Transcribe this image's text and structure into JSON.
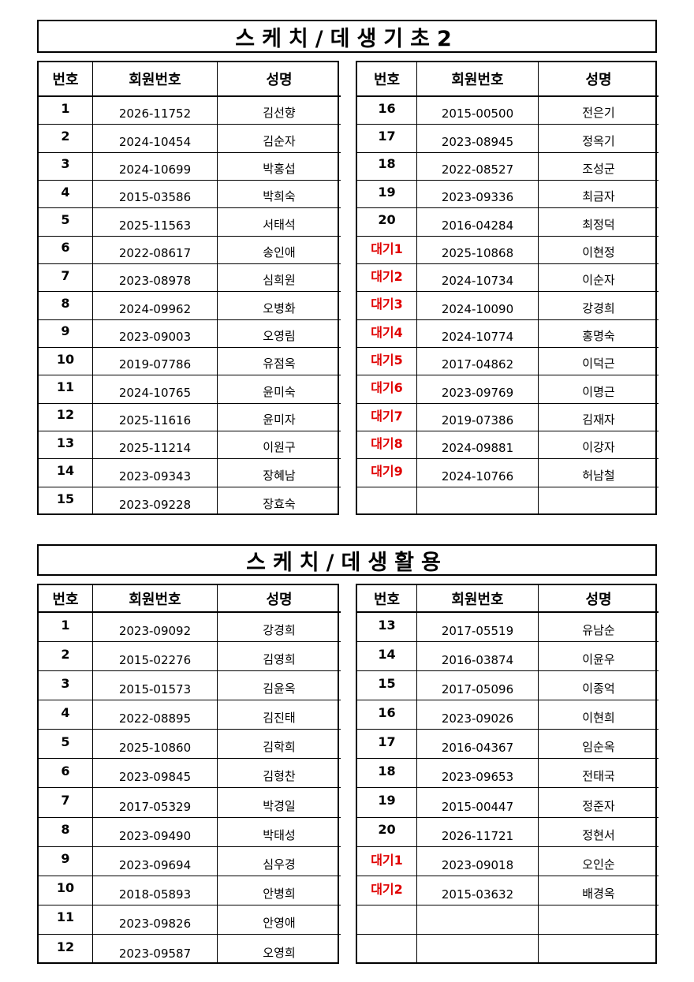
{
  "sections": [
    {
      "title": "스케치/데생기초2",
      "tables": [
        {
          "header": [
            "번호",
            "회원번호",
            "성명"
          ],
          "rows": [
            [
              "1",
              "2026-11752",
              "김선향"
            ],
            [
              "2",
              "2024-10454",
              "김순자"
            ],
            [
              "3",
              "2024-10699",
              "박홍섭"
            ],
            [
              "4",
              "2015-03586",
              "박희숙"
            ],
            [
              "5",
              "2025-11563",
              "서태석"
            ],
            [
              "6",
              "2022-08617",
              "송인애"
            ],
            [
              "7",
              "2023-08978",
              "심희원"
            ],
            [
              "8",
              "2024-09962",
              "오병화"
            ],
            [
              "9",
              "2023-09003",
              "오영림"
            ],
            [
              "10",
              "2019-07786",
              "유점옥"
            ],
            [
              "11",
              "2024-10765",
              "윤미숙"
            ],
            [
              "12",
              "2025-11616",
              "윤미자"
            ],
            [
              "13",
              "2025-11214",
              "이원구"
            ],
            [
              "14",
              "2023-09343",
              "장혜남"
            ],
            [
              "15",
              "2023-09228",
              "장효숙"
            ]
          ]
        },
        {
          "header": [
            "번호",
            "회원번호",
            "성명"
          ],
          "rows": [
            [
              "16",
              "2015-00500",
              "전은기"
            ],
            [
              "17",
              "2023-08945",
              "정옥기"
            ],
            [
              "18",
              "2022-08527",
              "조성군"
            ],
            [
              "19",
              "2023-09336",
              "최금자"
            ],
            [
              "20",
              "2016-04284",
              "최정덕"
            ],
            [
              "대기1",
              "2025-10868",
              "이현정"
            ],
            [
              "대기2",
              "2024-10734",
              "이순자"
            ],
            [
              "대기3",
              "2024-10090",
              "강경희"
            ],
            [
              "대기4",
              "2024-10774",
              "홍명숙"
            ],
            [
              "대기5",
              "2017-04862",
              "이덕근"
            ],
            [
              "대기6",
              "2023-09769",
              "이명근"
            ],
            [
              "대기7",
              "2019-07386",
              "김재자"
            ],
            [
              "대기8",
              "2024-09881",
              "이강자"
            ],
            [
              "대기9",
              "2024-10766",
              "허남철"
            ]
          ]
        }
      ]
    },
    {
      "title": "스케치/데생활용",
      "tables": [
        {
          "header": [
            "번호",
            "회원번호",
            "성명"
          ],
          "rows": [
            [
              "1",
              "2023-09092",
              "강경희"
            ],
            [
              "2",
              "2015-02276",
              "김영희"
            ],
            [
              "3",
              "2015-01573",
              "김윤옥"
            ],
            [
              "4",
              "2022-08895",
              "김진태"
            ],
            [
              "5",
              "2025-10860",
              "김학희"
            ],
            [
              "6",
              "2023-09845",
              "김형찬"
            ],
            [
              "7",
              "2017-05329",
              "박경일"
            ],
            [
              "8",
              "2023-09490",
              "박태성"
            ],
            [
              "9",
              "2023-09694",
              "심우경"
            ],
            [
              "10",
              "2018-05893",
              "안병희"
            ],
            [
              "11",
              "2023-09826",
              "안영애"
            ],
            [
              "12",
              "2023-09587",
              "오영희"
            ]
          ]
        },
        {
          "header": [
            "번호",
            "회원번호",
            "성명"
          ],
          "rows": [
            [
              "13",
              "2017-05519",
              "유남순"
            ],
            [
              "14",
              "2016-03874",
              "이윤우"
            ],
            [
              "15",
              "2017-05096",
              "이종억"
            ],
            [
              "16",
              "2023-09026",
              "이현희"
            ],
            [
              "17",
              "2016-04367",
              "임순옥"
            ],
            [
              "18",
              "2023-09653",
              "전태국"
            ],
            [
              "19",
              "2015-00447",
              "정준자"
            ],
            [
              "20",
              "2026-11721",
              "정현서"
            ],
            [
              "대기1",
              "2023-09018",
              "오인순"
            ],
            [
              "대기2",
              "2015-03632",
              "배경옥"
            ]
          ]
        }
      ]
    }
  ]
}
